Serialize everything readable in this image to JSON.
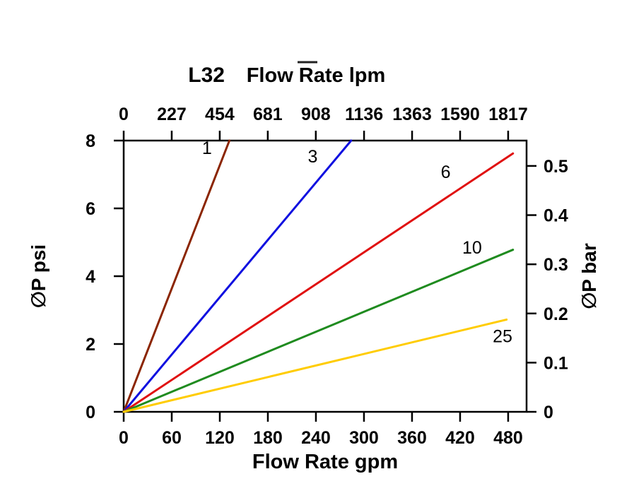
{
  "chart_data": {
    "type": "line",
    "title": {
      "prefix": "L32",
      "text": "Flow Rate lpm"
    },
    "x_bottom": {
      "label": "Flow Rate gpm",
      "ticks": [
        0,
        60,
        120,
        180,
        240,
        300,
        360,
        420,
        480
      ],
      "domain": [
        0,
        503
      ]
    },
    "x_top": {
      "ticks": [
        0,
        227,
        454,
        681,
        908,
        1136,
        1363,
        1590,
        1817
      ],
      "lpm_per_gpm": 3.78541
    },
    "y_left": {
      "label": "∅P psi",
      "ticks": [
        0,
        2,
        4,
        6,
        8
      ],
      "domain": [
        0,
        8
      ]
    },
    "y_right": {
      "label": "∅P bar",
      "ticks": [
        0,
        0.1,
        0.2,
        0.3,
        0.4,
        0.5
      ],
      "psi_per_bar": 14.5038
    },
    "series": [
      {
        "label": "1",
        "color": "#8B2500",
        "points": [
          [
            0,
            0
          ],
          [
            132,
            8
          ]
        ],
        "label_at": [
          104,
          7.6
        ]
      },
      {
        "label": "3",
        "color": "#1010E0",
        "points": [
          [
            0,
            0
          ],
          [
            284,
            8
          ]
        ],
        "label_at": [
          236,
          7.35
        ]
      },
      {
        "label": "6",
        "color": "#E01010",
        "points": [
          [
            0,
            0
          ],
          [
            486,
            7.62
          ]
        ],
        "label_at": [
          402,
          6.9
        ]
      },
      {
        "label": "10",
        "color": "#1F8B1F",
        "points": [
          [
            0,
            0
          ],
          [
            486,
            4.78
          ]
        ],
        "label_at": [
          435,
          4.67
        ]
      },
      {
        "label": "25",
        "color": "#FFCC00",
        "points": [
          [
            0,
            0
          ],
          [
            478,
            2.72
          ]
        ],
        "label_at": [
          473,
          2.05
        ]
      }
    ],
    "grid": false,
    "legend": "inline-curve-labels"
  }
}
